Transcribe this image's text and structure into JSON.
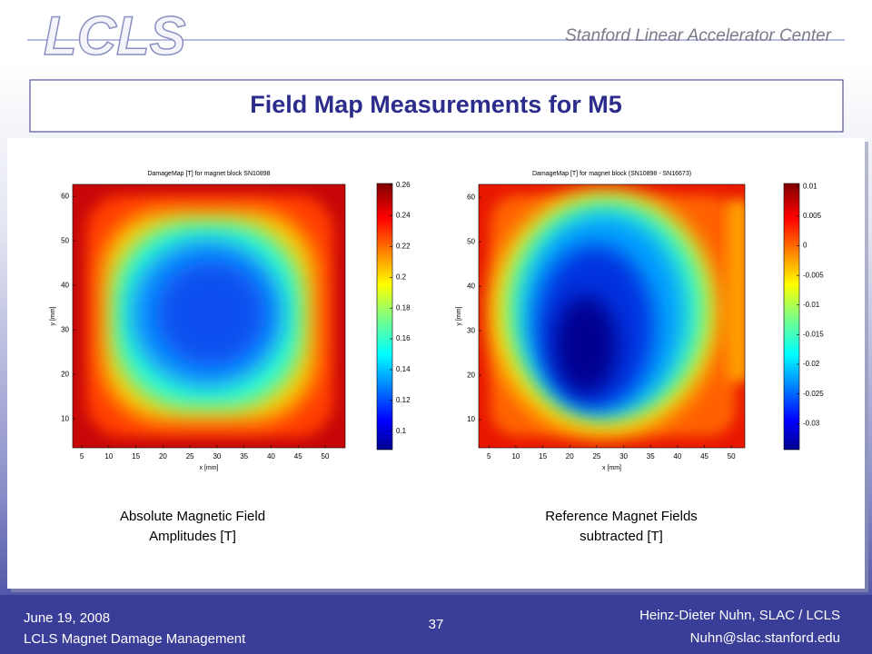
{
  "header": {
    "logo": "LCLS",
    "organization": "Stanford Linear Accelerator Center"
  },
  "title": "Field Map Measurements for M5",
  "chart_data": [
    {
      "type": "heatmap",
      "title": "DamageMap [T] for magnet block SN10898",
      "xlabel": "x [mm]",
      "ylabel": "y [mm]",
      "xlim": [
        3.3,
        53.7
      ],
      "xticks": [
        5,
        10,
        15,
        20,
        25,
        30,
        35,
        40,
        45,
        50
      ],
      "ylim": [
        3.5,
        62.7
      ],
      "yticks": [
        10,
        20,
        30,
        40,
        50,
        60
      ],
      "colormap": "jet",
      "clim": [
        0.088,
        0.261
      ],
      "cticks": [
        0.1,
        0.12,
        0.14,
        0.16,
        0.18,
        0.2,
        0.22,
        0.24,
        0.26
      ]
    },
    {
      "type": "heatmap",
      "title": "DamageMap [T] for magnet block (SN10898 - SN16673)",
      "xlabel": "x [mm]",
      "ylabel": "y [mm]",
      "xlim": [
        3.1,
        52.5
      ],
      "xticks": [
        5,
        10,
        15,
        20,
        25,
        30,
        35,
        40,
        45,
        50
      ],
      "ylim": [
        3.7,
        62.9
      ],
      "yticks": [
        10,
        20,
        30,
        40,
        50,
        60
      ],
      "colormap": "jet",
      "clim": [
        -0.0344,
        0.0105
      ],
      "cticks": [
        -0.03,
        -0.025,
        -0.02,
        -0.015,
        -0.01,
        -0.005,
        0,
        0.005,
        0.01
      ]
    }
  ],
  "captions": [
    [
      "Absolute Magnetic Field",
      "Amplitudes [T]"
    ],
    [
      "Reference Magnet Fields",
      "subtracted  [T]"
    ]
  ],
  "footer": {
    "date": "June 19, 2008",
    "subject": "LCLS Magnet Damage Management",
    "page": "37",
    "author": "Heinz-Dieter Nuhn, SLAC / LCLS",
    "email": "Nuhn@slac.stanford.edu"
  }
}
